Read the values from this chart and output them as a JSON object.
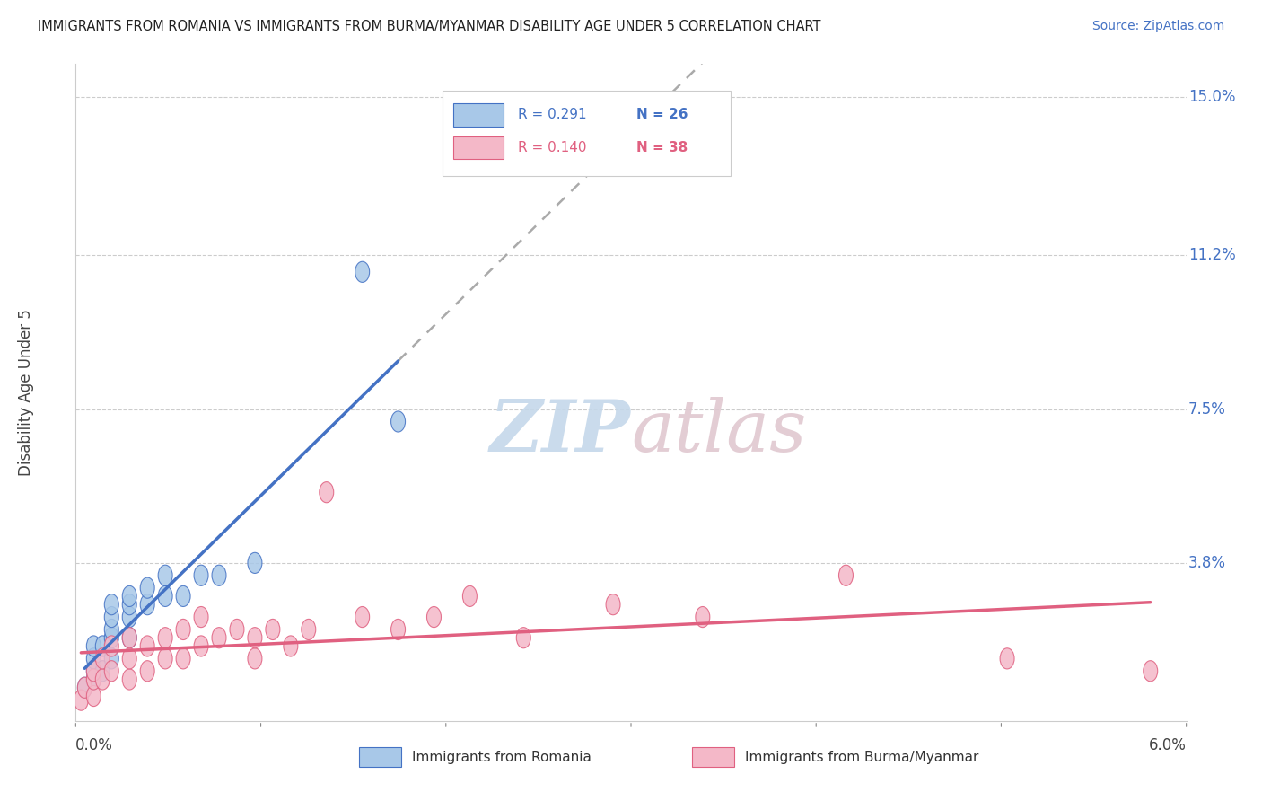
{
  "title": "IMMIGRANTS FROM ROMANIA VS IMMIGRANTS FROM BURMA/MYANMAR DISABILITY AGE UNDER 5 CORRELATION CHART",
  "source": "Source: ZipAtlas.com",
  "ylabel": "Disability Age Under 5",
  "xlim": [
    0.0,
    0.062
  ],
  "ylim": [
    0.0,
    0.158
  ],
  "romania_color": "#a8c8e8",
  "romania_color_dark": "#4472c4",
  "burma_color": "#f4b8c8",
  "burma_color_dark": "#e06080",
  "legend_R_romania": "0.291",
  "legend_N_romania": "26",
  "legend_R_burma": "0.140",
  "legend_N_burma": "38",
  "romania_x": [
    0.0005,
    0.001,
    0.001,
    0.001,
    0.001,
    0.0015,
    0.0015,
    0.002,
    0.002,
    0.002,
    0.002,
    0.002,
    0.003,
    0.003,
    0.003,
    0.003,
    0.004,
    0.004,
    0.005,
    0.005,
    0.006,
    0.007,
    0.008,
    0.01,
    0.016,
    0.018
  ],
  "romania_y": [
    0.008,
    0.01,
    0.012,
    0.015,
    0.018,
    0.012,
    0.018,
    0.015,
    0.02,
    0.022,
    0.025,
    0.028,
    0.02,
    0.025,
    0.028,
    0.03,
    0.028,
    0.032,
    0.03,
    0.035,
    0.03,
    0.035,
    0.035,
    0.038,
    0.108,
    0.072
  ],
  "burma_x": [
    0.0003,
    0.0005,
    0.001,
    0.001,
    0.001,
    0.0015,
    0.0015,
    0.002,
    0.002,
    0.003,
    0.003,
    0.003,
    0.004,
    0.004,
    0.005,
    0.005,
    0.006,
    0.006,
    0.007,
    0.007,
    0.008,
    0.009,
    0.01,
    0.01,
    0.011,
    0.012,
    0.013,
    0.014,
    0.016,
    0.018,
    0.02,
    0.022,
    0.025,
    0.03,
    0.035,
    0.043,
    0.052,
    0.06
  ],
  "burma_y": [
    0.005,
    0.008,
    0.006,
    0.01,
    0.012,
    0.01,
    0.015,
    0.012,
    0.018,
    0.01,
    0.015,
    0.02,
    0.012,
    0.018,
    0.015,
    0.02,
    0.015,
    0.022,
    0.018,
    0.025,
    0.02,
    0.022,
    0.015,
    0.02,
    0.022,
    0.018,
    0.022,
    0.055,
    0.025,
    0.022,
    0.025,
    0.03,
    0.02,
    0.028,
    0.025,
    0.035,
    0.015,
    0.012
  ],
  "watermark_zip": "ZIP",
  "watermark_atlas": "atlas",
  "watermark_color_zip": "#c8d8e8",
  "watermark_color_atlas": "#d8c8d0",
  "ytick_vals": [
    0.038,
    0.075,
    0.112,
    0.15
  ],
  "ytick_labels": [
    "3.8%",
    "7.5%",
    "11.2%",
    "15.0%"
  ],
  "xtick_labels": [
    "0.0%",
    "6.0%"
  ]
}
